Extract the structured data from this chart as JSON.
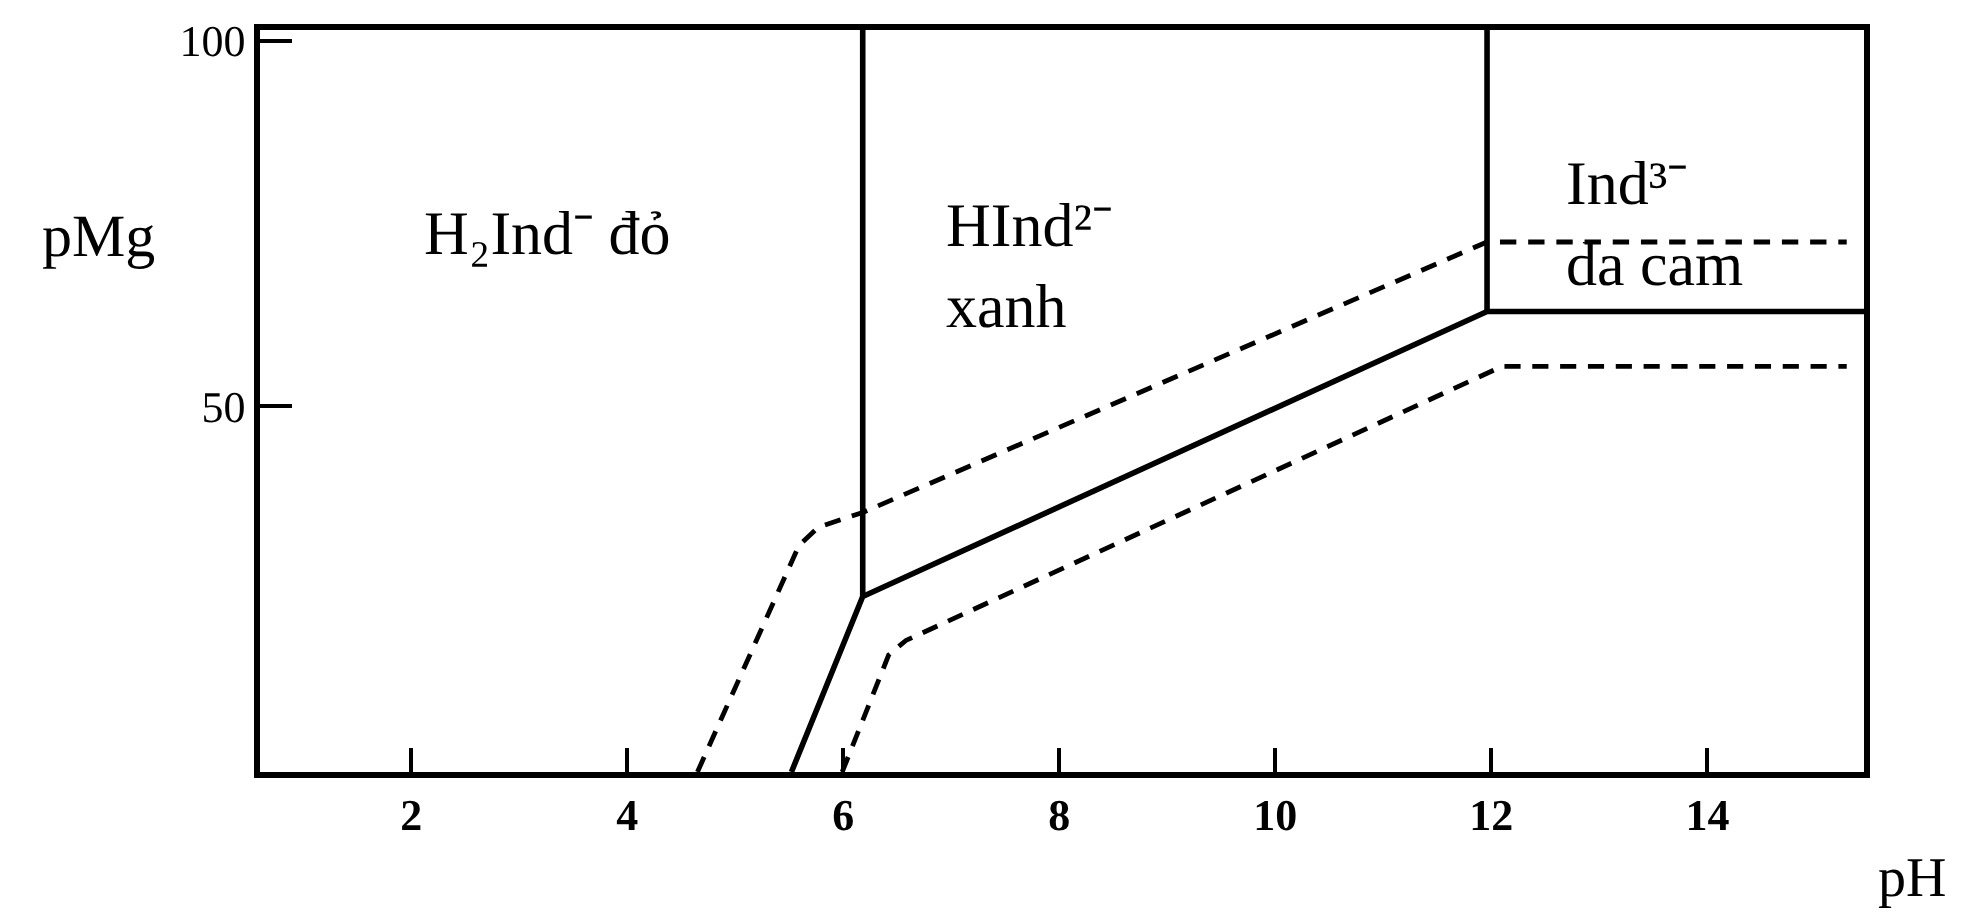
{
  "chart_data": {
    "type": "line",
    "xlabel": "pH",
    "ylabel": "pMg",
    "xlim": [
      0.6,
      15.45
    ],
    "ylim": [
      0,
      101.5
    ],
    "xticks": [
      2,
      4,
      6,
      8,
      10,
      12,
      14
    ],
    "yticks": [
      50,
      100
    ],
    "series": [
      {
        "color": "#000000",
        "line_style": "solid",
        "x": [
          5.52,
          6.18,
          11.96,
          15.45
        ],
        "values": [
          0,
          24,
          63,
          63
        ]
      },
      {
        "color": "#000000",
        "line_style": "solid",
        "x": [
          6.18,
          6.18
        ],
        "values": [
          24,
          101.5
        ]
      },
      {
        "color": "#000000",
        "line_style": "solid",
        "x": [
          11.96,
          11.96
        ],
        "values": [
          63,
          101.5
        ]
      },
      {
        "color": "#000000",
        "line_style": "dashed",
        "x": [
          4.65,
          5.59,
          5.77,
          6.18,
          11.96,
          15.29
        ],
        "values": [
          0,
          31,
          33.5,
          35.5,
          72.5,
          72.5
        ]
      },
      {
        "color": "#000000",
        "line_style": "dashed",
        "x": [
          5.99,
          6.42,
          6.58,
          12.1,
          15.29
        ],
        "values": [
          0,
          16,
          18,
          55.5,
          55.5
        ]
      }
    ],
    "annotations": [
      "H₂Ind⁻ đỏ",
      "HInd²⁻\nxanh",
      "Ind³⁻\nda cam"
    ]
  }
}
